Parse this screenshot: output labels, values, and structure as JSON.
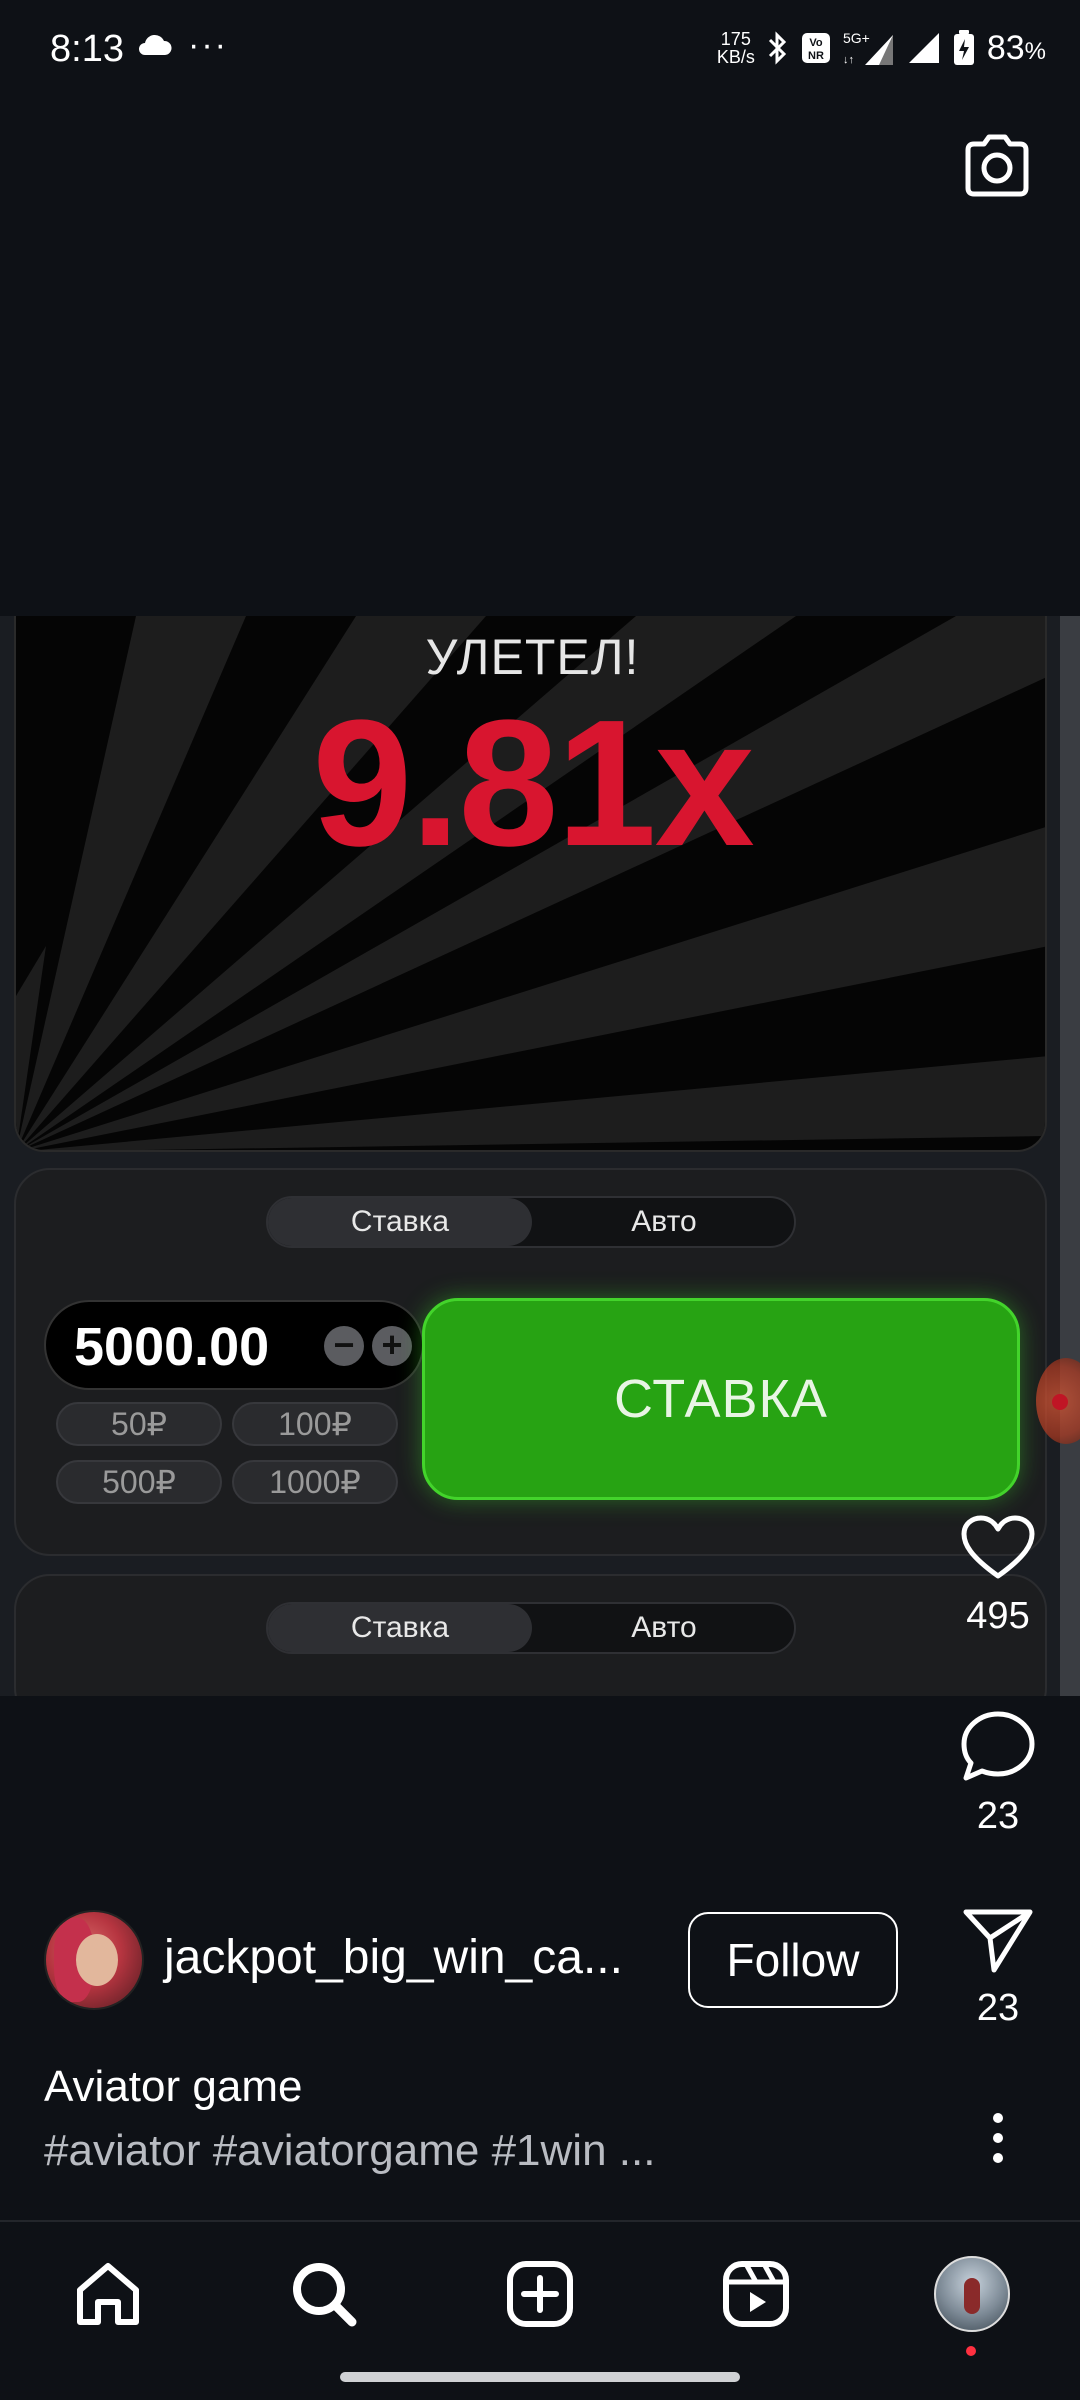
{
  "status_bar": {
    "time": "8:13",
    "more_dots": "···",
    "net_speed_value": "175",
    "net_speed_unit": "KB/s",
    "battery_percent": "83",
    "percent_sign": "%"
  },
  "video": {
    "flew_text": "УЛЕТЕЛ!",
    "multiplier": "9.81x",
    "panel1": {
      "tab_bet": "Ставка",
      "tab_auto": "Авто",
      "amount": "5000.00",
      "minus": "−",
      "plus": "+",
      "chips": [
        "50₽",
        "100₽",
        "500₽",
        "1000₽"
      ],
      "bet_button": "СТАВКА"
    },
    "panel2": {
      "tab_bet": "Ставка",
      "tab_auto": "Авто"
    }
  },
  "actions": {
    "likes": "495",
    "comments": "23",
    "shares": "23"
  },
  "post": {
    "username": "jackpot_big_win_ca...",
    "follow_label": "Follow",
    "caption": "Aviator game",
    "tags": "#aviator #aviatorgame #1win ..."
  },
  "colors": {
    "background": "#0e1116",
    "multiplier": "#d8152f",
    "bet_button": "#27a313",
    "notification_dot": "#ff3040"
  },
  "icons": {
    "status": [
      "cloud-icon",
      "bluetooth-icon",
      "volte-icon",
      "5g-signal-icon",
      "signal-icon",
      "battery-charging-icon"
    ],
    "top": [
      "camera-icon"
    ],
    "side": [
      "heart-icon",
      "comment-icon",
      "send-icon",
      "more-vertical-icon"
    ],
    "nav": [
      "home-icon",
      "search-icon",
      "add-icon",
      "reels-icon",
      "profile-avatar"
    ]
  }
}
